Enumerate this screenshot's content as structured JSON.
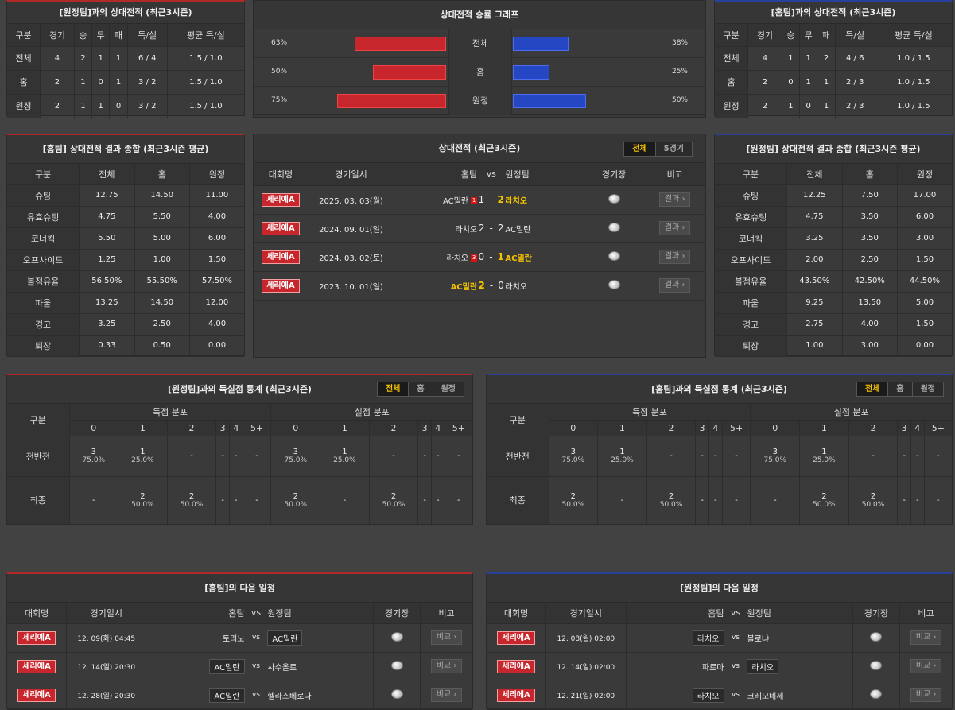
{
  "h2h_away": {
    "title": "[원정팀]과의 상대전적 (최근3시즌)",
    "headers": [
      "구분",
      "경기",
      "승",
      "무",
      "패",
      "득/실",
      "평균 득/실"
    ],
    "rows": [
      [
        "전체",
        "4",
        "2",
        "1",
        "1",
        "6 / 4",
        "1.5 / 1.0"
      ],
      [
        "홈",
        "2",
        "1",
        "0",
        "1",
        "3 / 2",
        "1.5 / 1.0"
      ],
      [
        "원정",
        "2",
        "1",
        "1",
        "0",
        "3 / 2",
        "1.5 / 1.0"
      ]
    ]
  },
  "h2h_home": {
    "title": "[홈팀]과의 상대전적 (최근3시즌)",
    "headers": [
      "구분",
      "경기",
      "승",
      "무",
      "패",
      "득/실",
      "평균 득/실"
    ],
    "rows": [
      [
        "전체",
        "4",
        "1",
        "1",
        "2",
        "4 / 6",
        "1.0 / 1.5"
      ],
      [
        "홈",
        "2",
        "0",
        "1",
        "1",
        "2 / 3",
        "1.0 / 1.5"
      ],
      [
        "원정",
        "2",
        "1",
        "0",
        "1",
        "2 / 3",
        "1.0 / 1.5"
      ]
    ]
  },
  "graph": {
    "title": "상대전적 승률 그래프",
    "rows": [
      {
        "label": "전체",
        "left_pct": "63%",
        "left_val": 63,
        "right_pct": "38%",
        "right_val": 38
      },
      {
        "label": "홈",
        "left_pct": "50%",
        "left_val": 50,
        "right_pct": "25%",
        "right_val": 25
      },
      {
        "label": "원정",
        "left_pct": "75%",
        "left_val": 75,
        "right_pct": "50%",
        "right_val": 50
      }
    ]
  },
  "summary_home": {
    "title": "[홈팀] 상대전적 결과 종합 (최근3시즌 평균)",
    "headers": [
      "구분",
      "전체",
      "홈",
      "원정"
    ],
    "rows": [
      [
        "슈팅",
        "12.75",
        "14.50",
        "11.00"
      ],
      [
        "유효슈팅",
        "4.75",
        "5.50",
        "4.00"
      ],
      [
        "코너킥",
        "5.50",
        "5.00",
        "6.00"
      ],
      [
        "오프사이드",
        "1.25",
        "1.00",
        "1.50"
      ],
      [
        "볼점유율",
        "56.50%",
        "55.50%",
        "57.50%"
      ],
      [
        "파울",
        "13.25",
        "14.50",
        "12.00"
      ],
      [
        "경고",
        "3.25",
        "2.50",
        "4.00"
      ],
      [
        "퇴장",
        "0.33",
        "0.50",
        "0.00"
      ]
    ]
  },
  "summary_away": {
    "title": "[원정팀] 상대전적 결과 종합 (최근3시즌 평균)",
    "headers": [
      "구분",
      "전체",
      "홈",
      "원정"
    ],
    "rows": [
      [
        "슈팅",
        "12.25",
        "7.50",
        "17.00"
      ],
      [
        "유효슈팅",
        "4.75",
        "3.50",
        "6.00"
      ],
      [
        "코너킥",
        "3.25",
        "3.50",
        "3.00"
      ],
      [
        "오프사이드",
        "2.00",
        "2.50",
        "1.50"
      ],
      [
        "볼점유율",
        "43.50%",
        "42.50%",
        "44.50%"
      ],
      [
        "파울",
        "9.25",
        "13.50",
        "5.00"
      ],
      [
        "경고",
        "2.75",
        "4.00",
        "1.50"
      ],
      [
        "퇴장",
        "1.00",
        "3.00",
        "0.00"
      ]
    ]
  },
  "history": {
    "title": "상대전적 (최근3시즌)",
    "tabs": [
      "전체",
      "5경기"
    ],
    "headers": {
      "league": "대회명",
      "date": "경기일시",
      "home": "홈팀",
      "vs": "vs",
      "away": "원정팀",
      "stadium": "경기장",
      "note": "비고"
    },
    "rows": [
      {
        "league": "세리에A",
        "date": "2025. 03. 03(월)",
        "home": "AC밀란",
        "home_card": "1",
        "hs": "1",
        "sep": "-",
        "as": "2",
        "away": "라치오",
        "away_card": "",
        "winner": "away",
        "btn": "결과 ›"
      },
      {
        "league": "세리에A",
        "date": "2024. 09. 01(일)",
        "home": "라치오",
        "home_card": "",
        "hs": "2",
        "sep": "-",
        "as": "2",
        "away": "AC밀란",
        "away_card": "",
        "winner": "none",
        "btn": "결과 ›"
      },
      {
        "league": "세리에A",
        "date": "2024. 03. 02(토)",
        "home": "라치오",
        "home_card": "3",
        "hs": "0",
        "sep": "-",
        "as": "1",
        "away": "AC밀란",
        "away_card": "",
        "winner": "away",
        "btn": "결과 ›"
      },
      {
        "league": "세리에A",
        "date": "2023. 10. 01(일)",
        "home": "AC밀란",
        "home_card": "",
        "hs": "2",
        "sep": "-",
        "as": "0",
        "away": "라치오",
        "away_card": "",
        "winner": "home",
        "btn": "결과 ›"
      }
    ]
  },
  "goals_left": {
    "title": "[원정팀]과의 득실점 통계 (최근3시즌)",
    "tabs": [
      "전체",
      "홈",
      "원정"
    ],
    "col_label": "구분",
    "scored": "득점 분포",
    "conceded": "실점 분포",
    "cols": [
      "0",
      "1",
      "2",
      "3",
      "4",
      "5+",
      "0",
      "1",
      "2",
      "3",
      "4",
      "5+"
    ],
    "rows": [
      {
        "label": "전반전",
        "cells": [
          [
            "3",
            "75.0%"
          ],
          [
            "1",
            "25.0%"
          ],
          [
            "-",
            ""
          ],
          [
            "-",
            ""
          ],
          [
            "-",
            ""
          ],
          [
            "-",
            ""
          ],
          [
            "3",
            "75.0%"
          ],
          [
            "1",
            "25.0%"
          ],
          [
            "-",
            ""
          ],
          [
            "-",
            ""
          ],
          [
            "-",
            ""
          ],
          [
            "-",
            ""
          ]
        ]
      },
      {
        "label": "최종",
        "cells": [
          [
            "-",
            ""
          ],
          [
            "2",
            "50.0%"
          ],
          [
            "2",
            "50.0%"
          ],
          [
            "-",
            ""
          ],
          [
            "-",
            ""
          ],
          [
            "-",
            ""
          ],
          [
            "2",
            "50.0%"
          ],
          [
            "-",
            ""
          ],
          [
            "2",
            "50.0%"
          ],
          [
            "-",
            ""
          ],
          [
            "-",
            ""
          ],
          [
            "-",
            ""
          ]
        ]
      }
    ]
  },
  "goals_right": {
    "title": "[홈팀]과의 득실점 통계 (최근3시즌)",
    "tabs": [
      "전체",
      "홈",
      "원정"
    ],
    "col_label": "구분",
    "scored": "득점 분포",
    "conceded": "실점 분포",
    "cols": [
      "0",
      "1",
      "2",
      "3",
      "4",
      "5+",
      "0",
      "1",
      "2",
      "3",
      "4",
      "5+"
    ],
    "rows": [
      {
        "label": "전반전",
        "cells": [
          [
            "3",
            "75.0%"
          ],
          [
            "1",
            "25.0%"
          ],
          [
            "-",
            ""
          ],
          [
            "-",
            ""
          ],
          [
            "-",
            ""
          ],
          [
            "-",
            ""
          ],
          [
            "3",
            "75.0%"
          ],
          [
            "1",
            "25.0%"
          ],
          [
            "-",
            ""
          ],
          [
            "-",
            ""
          ],
          [
            "-",
            ""
          ],
          [
            "-",
            ""
          ]
        ]
      },
      {
        "label": "최종",
        "cells": [
          [
            "2",
            "50.0%"
          ],
          [
            "-",
            ""
          ],
          [
            "2",
            "50.0%"
          ],
          [
            "-",
            ""
          ],
          [
            "-",
            ""
          ],
          [
            "-",
            ""
          ],
          [
            "-",
            ""
          ],
          [
            "2",
            "50.0%"
          ],
          [
            "2",
            "50.0%"
          ],
          [
            "-",
            ""
          ],
          [
            "-",
            ""
          ],
          [
            "-",
            ""
          ]
        ]
      }
    ]
  },
  "next_home": {
    "title": "[홈팀]의 다음 일정",
    "headers": [
      "대회명",
      "경기일시",
      "홈팀",
      "vs",
      "원정팀",
      "경기장",
      "비고"
    ],
    "rows": [
      {
        "league": "세리에A",
        "date": "12. 09(화) 04:45",
        "home": "토리노",
        "away": "AC밀란",
        "hl": "away",
        "btn": "비교 ›"
      },
      {
        "league": "세리에A",
        "date": "12. 14(일) 20:30",
        "home": "AC밀란",
        "away": "사수올로",
        "hl": "home",
        "btn": "비교 ›"
      },
      {
        "league": "세리에A",
        "date": "12. 28(일) 20:30",
        "home": "AC밀란",
        "away": "헬라스베로나",
        "hl": "home",
        "btn": "비교 ›"
      }
    ]
  },
  "next_away": {
    "title": "[원정팀]의 다음 일정",
    "headers": [
      "대회명",
      "경기일시",
      "홈팀",
      "vs",
      "원정팀",
      "경기장",
      "비고"
    ],
    "rows": [
      {
        "league": "세리에A",
        "date": "12. 08(월) 02:00",
        "home": "라치오",
        "away": "볼로냐",
        "hl": "home",
        "btn": "비교 ›"
      },
      {
        "league": "세리에A",
        "date": "12. 14(일) 02:00",
        "home": "파르마",
        "away": "라치오",
        "hl": "away",
        "btn": "비교 ›"
      },
      {
        "league": "세리에A",
        "date": "12. 21(일) 02:00",
        "home": "라치오",
        "away": "크레모네세",
        "hl": "home",
        "btn": "비교 ›"
      }
    ]
  },
  "colors": {
    "red": "#c8262d",
    "blue": "#2547c4",
    "highlight": "#f5c400"
  }
}
